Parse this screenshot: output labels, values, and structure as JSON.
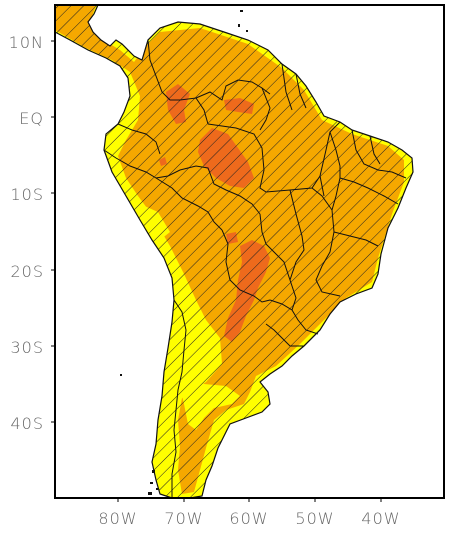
{
  "map": {
    "lat_labels": [
      "10N",
      "EQ",
      "10S",
      "20S",
      "30S",
      "40S"
    ],
    "lon_labels": [
      "80W",
      "70W",
      "60W",
      "50W",
      "40W"
    ],
    "colors": {
      "low": "#ffff00",
      "medium": "#f5a800",
      "high": "#ee6a1c",
      "hatch": "#222222",
      "border": "#111111",
      "frame": "#000000"
    }
  }
}
